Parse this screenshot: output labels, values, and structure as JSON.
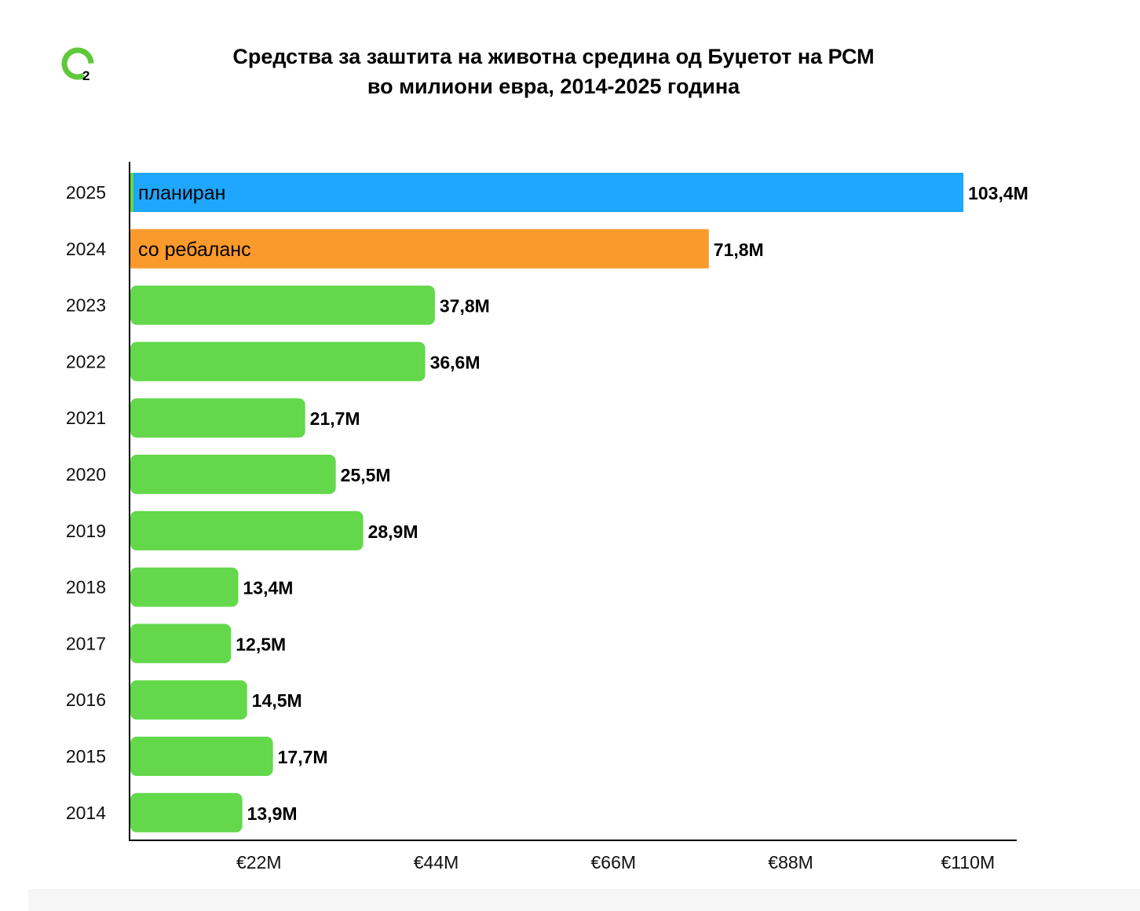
{
  "logo": {
    "text": "2",
    "icon": "o2-logo-icon",
    "color": "#5fc93a"
  },
  "title": {
    "line1": "Средства за заштита на животна средина од Буџетот на РСМ",
    "line2": "во милиони евра, 2014-2025 година"
  },
  "chart_data": {
    "type": "bar",
    "orientation": "horizontal",
    "title": "Средства за заштита на животна средина од Буџетот на РСМ во милиони евра, 2014-2025 година",
    "xlabel": "",
    "ylabel": "",
    "categories": [
      "2025",
      "2024",
      "2023",
      "2022",
      "2021",
      "2020",
      "2019",
      "2018",
      "2017",
      "2016",
      "2015",
      "2014"
    ],
    "values": [
      103.4,
      71.8,
      37.8,
      36.6,
      21.7,
      25.5,
      28.9,
      13.4,
      12.5,
      14.5,
      17.7,
      13.9
    ],
    "value_labels": [
      "103,4M",
      "71,8M",
      "37,8M",
      "36,6M",
      "21,7M",
      "25,5M",
      "28,9M",
      "13,4M",
      "12,5M",
      "14,5M",
      "17,7M",
      "13,9M"
    ],
    "bar_inner_labels": [
      "планиран",
      "со ребаланс",
      "",
      "",
      "",
      "",
      "",
      "",
      "",
      "",
      "",
      ""
    ],
    "bar_colors": [
      "#1ea7fd",
      "#fb9a2c",
      "#62d84a",
      "#62d84a",
      "#62d84a",
      "#62d84a",
      "#62d84a",
      "#62d84a",
      "#62d84a",
      "#62d84a",
      "#62d84a",
      "#62d84a"
    ],
    "xlim": [
      0,
      110
    ],
    "x_ticks": [
      22,
      44,
      66,
      88,
      110
    ],
    "x_tick_labels": [
      "€22M",
      "€44M",
      "€66M",
      "€88M",
      "€110M"
    ],
    "grid": false,
    "legend": "none"
  },
  "footer": {
    "background": "#f6f6f7"
  }
}
